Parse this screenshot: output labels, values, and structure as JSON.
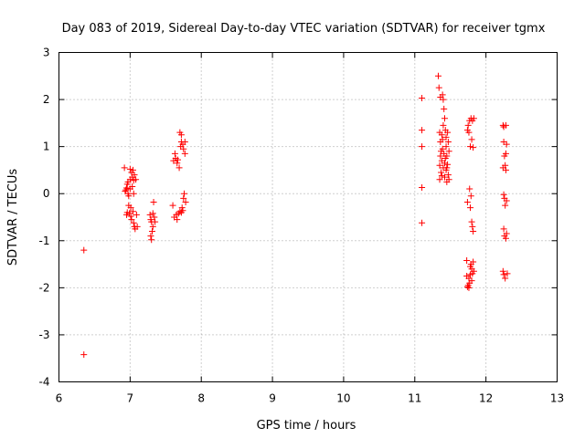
{
  "chart_data": {
    "type": "scatter",
    "title": "Day 083 of 2019, Sidereal Day-to-day VTEC variation (SDTVAR) for receiver tgmx",
    "xlabel": "GPS time / hours",
    "ylabel": "SDTVAR / TECUs",
    "xlim": [
      6,
      13
    ],
    "ylim": [
      -4,
      3
    ],
    "xticks": [
      "6",
      "7",
      "8",
      "9",
      "10",
      "11",
      "12",
      "13"
    ],
    "yticks": [
      "-4",
      "-3",
      "-2",
      "-1",
      "0",
      "1",
      "2",
      "3"
    ],
    "grid": true,
    "marker": "+",
    "color": "#ff0000",
    "series": [
      {
        "name": "SDTVAR",
        "points": [
          [
            6.35,
            -1.2
          ],
          [
            6.35,
            -3.42
          ],
          [
            6.92,
            0.55
          ],
          [
            6.93,
            0.05
          ],
          [
            6.94,
            0.08
          ],
          [
            6.95,
            0.12
          ],
          [
            6.96,
            0.2
          ],
          [
            6.97,
            0.25
          ],
          [
            6.97,
            0.0
          ],
          [
            6.98,
            -0.05
          ],
          [
            6.98,
            -0.25
          ],
          [
            6.99,
            -0.42
          ],
          [
            7.0,
            0.52
          ],
          [
            7.0,
            0.3
          ],
          [
            7.01,
            -0.3
          ],
          [
            7.01,
            -0.48
          ],
          [
            7.02,
            0.45
          ],
          [
            7.02,
            -0.55
          ],
          [
            7.03,
            0.35
          ],
          [
            7.03,
            0.15
          ],
          [
            7.04,
            -0.38
          ],
          [
            7.04,
            0.5
          ],
          [
            7.05,
            -0.62
          ],
          [
            7.05,
            0.28
          ],
          [
            7.06,
            -0.7
          ],
          [
            7.06,
            0.4
          ],
          [
            7.07,
            -0.75
          ],
          [
            7.08,
            0.3
          ],
          [
            7.09,
            -0.45
          ],
          [
            7.1,
            -0.7
          ],
          [
            6.95,
            -0.45
          ],
          [
            6.96,
            -0.4
          ],
          [
            7.0,
            0.1
          ],
          [
            7.05,
            0.0
          ],
          [
            7.28,
            -0.45
          ],
          [
            7.29,
            -0.55
          ],
          [
            7.29,
            -0.9
          ],
          [
            7.3,
            -0.98
          ],
          [
            7.3,
            -0.6
          ],
          [
            7.31,
            -0.8
          ],
          [
            7.32,
            -0.42
          ],
          [
            7.32,
            -0.7
          ],
          [
            7.33,
            -0.18
          ],
          [
            7.34,
            -0.5
          ],
          [
            7.35,
            -0.6
          ],
          [
            7.6,
            -0.25
          ],
          [
            7.61,
            0.7
          ],
          [
            7.62,
            -0.5
          ],
          [
            7.63,
            0.85
          ],
          [
            7.64,
            0.75
          ],
          [
            7.65,
            -0.45
          ],
          [
            7.66,
            0.65
          ],
          [
            7.66,
            -0.55
          ],
          [
            7.67,
            0.72
          ],
          [
            7.68,
            -0.42
          ],
          [
            7.69,
            0.55
          ],
          [
            7.7,
            -0.38
          ],
          [
            7.7,
            1.3
          ],
          [
            7.71,
            1.0
          ],
          [
            7.72,
            1.1
          ],
          [
            7.72,
            1.25
          ],
          [
            7.73,
            -0.3
          ],
          [
            7.74,
            1.05
          ],
          [
            7.75,
            -0.1
          ],
          [
            7.75,
            0.95
          ],
          [
            7.76,
            0.0
          ],
          [
            7.77,
            1.1
          ],
          [
            7.77,
            0.85
          ],
          [
            7.78,
            -0.18
          ],
          [
            7.74,
            -0.36
          ],
          [
            7.72,
            -0.4
          ],
          [
            11.1,
            2.03
          ],
          [
            11.1,
            1.35
          ],
          [
            11.1,
            1.0
          ],
          [
            11.1,
            0.13
          ],
          [
            11.1,
            -0.62
          ],
          [
            11.33,
            2.5
          ],
          [
            11.34,
            2.25
          ],
          [
            11.35,
            1.3
          ],
          [
            11.35,
            0.3
          ],
          [
            11.36,
            2.05
          ],
          [
            11.36,
            1.1
          ],
          [
            11.37,
            0.9
          ],
          [
            11.37,
            0.45
          ],
          [
            11.38,
            0.7
          ],
          [
            11.38,
            1.25
          ],
          [
            11.39,
            2.1
          ],
          [
            11.39,
            0.95
          ],
          [
            11.4,
            2.0
          ],
          [
            11.4,
            0.55
          ],
          [
            11.41,
            1.8
          ],
          [
            11.41,
            0.85
          ],
          [
            11.42,
            1.6
          ],
          [
            11.42,
            0.35
          ],
          [
            11.43,
            1.35
          ],
          [
            11.43,
            0.75
          ],
          [
            11.44,
            1.0
          ],
          [
            11.44,
            0.5
          ],
          [
            11.45,
            0.8
          ],
          [
            11.45,
            0.25
          ],
          [
            11.46,
            0.62
          ],
          [
            11.46,
            1.3
          ],
          [
            11.47,
            1.1
          ],
          [
            11.47,
            0.4
          ],
          [
            11.48,
            0.9
          ],
          [
            11.48,
            0.3
          ],
          [
            11.35,
            0.6
          ],
          [
            11.38,
            0.38
          ],
          [
            11.4,
            1.45
          ],
          [
            11.42,
            0.65
          ],
          [
            11.44,
            1.2
          ],
          [
            11.45,
            0.55
          ],
          [
            11.36,
            0.8
          ],
          [
            11.39,
            1.15
          ],
          [
            11.73,
            -1.42
          ],
          [
            11.73,
            -1.75
          ],
          [
            11.74,
            1.35
          ],
          [
            11.74,
            -0.18
          ],
          [
            11.75,
            1.45
          ],
          [
            11.75,
            -1.95
          ],
          [
            11.76,
            1.3
          ],
          [
            11.76,
            -1.8
          ],
          [
            11.77,
            1.55
          ],
          [
            11.77,
            0.1
          ],
          [
            11.77,
            -1.9
          ],
          [
            11.78,
            1.0
          ],
          [
            11.78,
            -0.3
          ],
          [
            11.78,
            -1.72
          ],
          [
            11.79,
            1.6
          ],
          [
            11.79,
            -0.05
          ],
          [
            11.79,
            -1.5
          ],
          [
            11.8,
            1.15
          ],
          [
            11.8,
            -0.6
          ],
          [
            11.8,
            -1.85
          ],
          [
            11.81,
            1.55
          ],
          [
            11.81,
            -0.7
          ],
          [
            11.81,
            -1.7
          ],
          [
            11.82,
            0.98
          ],
          [
            11.82,
            -0.8
          ],
          [
            11.82,
            -1.45
          ],
          [
            11.83,
            1.6
          ],
          [
            11.83,
            -1.65
          ],
          [
            11.74,
            -1.98
          ],
          [
            11.76,
            -2.0
          ],
          [
            11.78,
            -1.55
          ],
          [
            11.8,
            -1.6
          ],
          [
            12.24,
            1.45
          ],
          [
            12.24,
            0.55
          ],
          [
            12.24,
            -1.65
          ],
          [
            12.25,
            1.42
          ],
          [
            12.25,
            1.1
          ],
          [
            12.25,
            -0.02
          ],
          [
            12.25,
            -0.75
          ],
          [
            12.25,
            -1.72
          ],
          [
            12.26,
            0.8
          ],
          [
            12.26,
            -0.1
          ],
          [
            12.26,
            -0.9
          ],
          [
            12.27,
            0.6
          ],
          [
            12.27,
            -0.25
          ],
          [
            12.27,
            -1.8
          ],
          [
            12.28,
            1.45
          ],
          [
            12.28,
            0.85
          ],
          [
            12.28,
            0.5
          ],
          [
            12.28,
            -0.95
          ],
          [
            12.29,
            1.05
          ],
          [
            12.29,
            -0.15
          ],
          [
            12.29,
            -0.85
          ],
          [
            12.3,
            -1.7
          ]
        ]
      }
    ]
  }
}
